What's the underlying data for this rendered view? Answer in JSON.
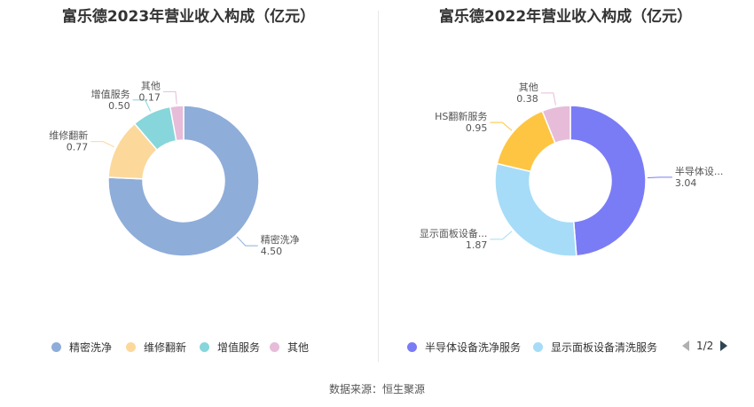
{
  "source_text": "数据来源：恒生聚源",
  "pager": {
    "label": "1/2"
  },
  "chart_data": [
    {
      "type": "pie",
      "variant": "donut",
      "title": "富乐德2023年营业收入构成（亿元）",
      "categories": [
        "精密洗净",
        "维修翻新",
        "增值服务",
        "其他"
      ],
      "values": [
        4.5,
        0.77,
        0.5,
        0.17
      ],
      "value_labels": [
        "4.50",
        "0.77",
        "0.50",
        "0.17"
      ],
      "slice_labels": [
        "精密洗净",
        "维修翻新",
        "增值服务",
        "其他"
      ],
      "colors": [
        "#8eadd9",
        "#fcd89b",
        "#87d6db",
        "#e6bcd9"
      ],
      "legend": [
        "精密洗净",
        "维修翻新",
        "增值服务",
        "其他"
      ],
      "legend_position": "bottom"
    },
    {
      "type": "pie",
      "variant": "donut",
      "title": "富乐德2022年营业收入构成（亿元）",
      "categories": [
        "半导体设备洗净服务",
        "显示面板设备清洗服务",
        "HS翻新服务",
        "其他"
      ],
      "values": [
        3.04,
        1.87,
        0.95,
        0.38
      ],
      "value_labels": [
        "3.04",
        "1.87",
        "0.95",
        "0.38"
      ],
      "slice_labels": [
        "半导体设...",
        "显示面板设备...",
        "HS翻新服务",
        "其他"
      ],
      "colors": [
        "#7a7cf5",
        "#a6dcf7",
        "#fec542",
        "#e6bcd9"
      ],
      "legend": [
        "半导体设备洗净服务",
        "显示面板设备清洗服务"
      ],
      "legend_position": "bottom"
    }
  ]
}
